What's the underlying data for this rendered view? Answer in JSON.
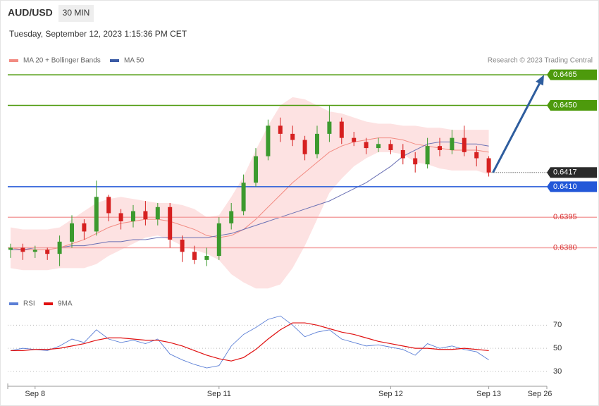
{
  "header": {
    "symbol": "AUD/USD",
    "timeframe": "30 MIN",
    "timestamp": "Tuesday, September 12, 2023 1:15:36 PM CET",
    "credit": "Research © 2023 Trading Central"
  },
  "chart_data": [
    {
      "type": "candlestick",
      "legend": [
        {
          "name": "MA 20 + Bollinger Bands",
          "color": "#f28b82"
        },
        {
          "name": "MA 50",
          "color": "#3b5ba5"
        }
      ],
      "categories": [
        null,
        null,
        "Sep 8",
        null,
        null,
        null,
        null,
        null,
        null,
        null,
        null,
        null,
        null,
        null,
        null,
        null,
        null,
        "Sep 11",
        null,
        null,
        null,
        null,
        null,
        null,
        null,
        null,
        null,
        null,
        null,
        null,
        null,
        "Sep 12",
        null,
        null,
        null,
        null,
        null,
        null,
        null,
        "Sep 13"
      ],
      "end_label": "Sep 26",
      "up_color": "#3c9a2e",
      "down_color": "#d62020",
      "open": [
        0.6379,
        0.638,
        0.6378,
        0.6379,
        0.6377,
        0.6383,
        0.6392,
        0.6388,
        0.6405,
        0.6397,
        0.6393,
        0.6398,
        0.6394,
        0.64,
        0.6384,
        0.6378,
        0.6374,
        0.6376,
        0.6392,
        0.6398,
        0.6412,
        0.6425,
        0.644,
        0.6436,
        0.6433,
        0.6426,
        0.6436,
        0.6442,
        0.6434,
        0.6432,
        0.6429,
        0.6431,
        0.6428,
        0.6424,
        0.6421,
        0.643,
        0.6428,
        0.6434,
        0.6427,
        0.6424
      ],
      "high": [
        0.6382,
        0.6382,
        0.6381,
        0.638,
        0.6386,
        0.6396,
        0.6394,
        0.6413,
        0.6406,
        0.6399,
        0.6401,
        0.6403,
        0.6402,
        0.6402,
        0.6386,
        0.6381,
        0.638,
        0.6395,
        0.6402,
        0.6416,
        0.6429,
        0.6443,
        0.6444,
        0.644,
        0.6435,
        0.644,
        0.645,
        0.6444,
        0.6437,
        0.6434,
        0.6434,
        0.6433,
        0.6431,
        0.6427,
        0.6434,
        0.6434,
        0.6438,
        0.644,
        0.643,
        0.6425
      ],
      "low": [
        0.6375,
        0.6374,
        0.6375,
        0.6374,
        0.6371,
        0.638,
        0.6384,
        0.6386,
        0.6393,
        0.6389,
        0.639,
        0.6391,
        0.6391,
        0.638,
        0.6373,
        0.6372,
        0.6371,
        0.6374,
        0.6389,
        0.6396,
        0.641,
        0.6423,
        0.6432,
        0.643,
        0.6423,
        0.6424,
        0.6432,
        0.6431,
        0.643,
        0.6426,
        0.6427,
        0.6426,
        0.6421,
        0.6417,
        0.6419,
        0.6425,
        0.6426,
        0.6425,
        0.642,
        0.6415
      ],
      "close": [
        0.638,
        0.6378,
        0.6379,
        0.6377,
        0.6383,
        0.6392,
        0.6388,
        0.6405,
        0.6397,
        0.6393,
        0.6398,
        0.6394,
        0.64,
        0.6384,
        0.6378,
        0.6374,
        0.6376,
        0.6392,
        0.6398,
        0.6412,
        0.6425,
        0.644,
        0.6436,
        0.6433,
        0.6426,
        0.6436,
        0.6442,
        0.6434,
        0.6432,
        0.6429,
        0.6431,
        0.6428,
        0.6424,
        0.6421,
        0.643,
        0.6428,
        0.6434,
        0.6427,
        0.6424,
        0.6417
      ],
      "ma20": [
        0.638,
        0.6379,
        0.6379,
        0.6379,
        0.638,
        0.6382,
        0.6384,
        0.6387,
        0.639,
        0.6392,
        0.6393,
        0.6394,
        0.6394,
        0.6393,
        0.6391,
        0.6389,
        0.6386,
        0.6385,
        0.6386,
        0.6389,
        0.6394,
        0.64,
        0.6406,
        0.6412,
        0.6417,
        0.6422,
        0.6427,
        0.643,
        0.6432,
        0.6433,
        0.6434,
        0.6434,
        0.6433,
        0.6431,
        0.643,
        0.6429,
        0.6428,
        0.6428,
        0.6428,
        0.6427
      ],
      "bollinger_upper": [
        0.639,
        0.6389,
        0.6389,
        0.6389,
        0.639,
        0.6394,
        0.6398,
        0.6402,
        0.6404,
        0.6405,
        0.6404,
        0.6403,
        0.6402,
        0.6402,
        0.6401,
        0.6399,
        0.6395,
        0.6396,
        0.6405,
        0.6415,
        0.6428,
        0.644,
        0.645,
        0.6454,
        0.6453,
        0.645,
        0.6447,
        0.6446,
        0.6444,
        0.6442,
        0.6441,
        0.6441,
        0.644,
        0.644,
        0.6439,
        0.6439,
        0.6438,
        0.6438,
        0.6438,
        0.6438
      ],
      "bollinger_lower": [
        0.637,
        0.6369,
        0.6369,
        0.6369,
        0.637,
        0.637,
        0.637,
        0.6372,
        0.6376,
        0.6379,
        0.6382,
        0.6385,
        0.6386,
        0.6384,
        0.6381,
        0.6379,
        0.6377,
        0.6374,
        0.6367,
        0.6363,
        0.636,
        0.636,
        0.6362,
        0.637,
        0.6381,
        0.6394,
        0.6407,
        0.6414,
        0.642,
        0.6424,
        0.6427,
        0.6427,
        0.6426,
        0.6422,
        0.6421,
        0.6419,
        0.6418,
        0.6418,
        0.6418,
        0.6416
      ],
      "ma50": [
        0.6379,
        0.6379,
        0.638,
        0.638,
        0.638,
        0.6381,
        0.6381,
        0.6382,
        0.6383,
        0.6383,
        0.6384,
        0.6384,
        0.6385,
        0.6385,
        0.6385,
        0.6385,
        0.6385,
        0.6386,
        0.6387,
        0.6389,
        0.6391,
        0.6393,
        0.6395,
        0.6397,
        0.6399,
        0.6401,
        0.6403,
        0.6406,
        0.6409,
        0.6412,
        0.6416,
        0.642,
        0.6425,
        0.6428,
        0.6431,
        0.6432,
        0.6432,
        0.6431,
        0.6431,
        0.643
      ],
      "levels": [
        {
          "value": 0.6465,
          "label": "0.6465",
          "color": "#4d9a0c",
          "boxed": true,
          "dotted": false
        },
        {
          "value": 0.645,
          "label": "0.6450",
          "color": "#4d9a0c",
          "boxed": true,
          "dotted": false
        },
        {
          "value": 0.6417,
          "label": "0.6417",
          "color": "#2b2b2b",
          "boxed": true,
          "dotted": true
        },
        {
          "value": 0.641,
          "label": "0.6410",
          "color": "#2358d8",
          "boxed": true,
          "dotted": false
        },
        {
          "value": 0.6395,
          "label": "0.6395",
          "color": "#f4a3a3",
          "boxed": false,
          "dotted": false
        },
        {
          "value": 0.638,
          "label": "0.6380",
          "color": "#f4a3a3",
          "boxed": false,
          "dotted": false
        }
      ],
      "forecast_color": "#2e5d9e",
      "ylim": [
        0.6358,
        0.6481
      ]
    },
    {
      "type": "line",
      "series": [
        {
          "name": "RSI",
          "color": "#5b7fd6",
          "values": [
            48,
            50,
            49,
            48,
            52,
            58,
            55,
            66,
            58,
            55,
            57,
            54,
            58,
            45,
            40,
            36,
            33,
            35,
            52,
            62,
            68,
            75,
            78,
            70,
            60,
            64,
            66,
            58,
            55,
            52,
            53,
            51,
            49,
            44,
            54,
            50,
            52,
            49,
            47,
            40
          ]
        },
        {
          "name": "9MA",
          "color": "#e01010",
          "values": [
            48,
            48,
            49,
            49,
            50,
            52,
            54,
            57,
            59,
            59,
            58,
            57,
            57,
            55,
            52,
            48,
            44,
            41,
            39,
            42,
            49,
            58,
            66,
            72,
            72,
            70,
            67,
            64,
            62,
            59,
            56,
            54,
            52,
            50,
            50,
            49,
            49,
            50,
            49,
            48
          ]
        }
      ],
      "ylim": [
        19,
        83
      ],
      "yticks": [
        70,
        50,
        30
      ]
    }
  ]
}
